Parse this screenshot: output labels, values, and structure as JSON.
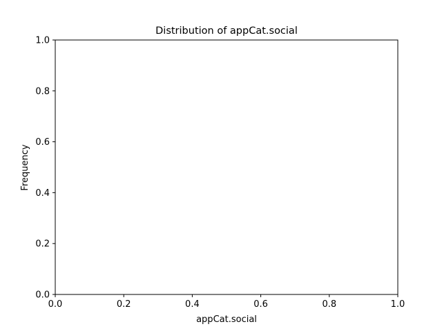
{
  "chart_data": {
    "type": "bar",
    "title": "Distribution of appCat.social",
    "xlabel": "appCat.social",
    "ylabel": "Frequency",
    "xlim": [
      0.0,
      1.0
    ],
    "ylim": [
      0.0,
      1.0
    ],
    "xticks": [
      0.0,
      0.2,
      0.4,
      0.6,
      0.8,
      1.0
    ],
    "yticks": [
      0.0,
      0.2,
      0.4,
      0.6,
      0.8,
      1.0
    ],
    "xtick_labels": [
      "0.0",
      "0.2",
      "0.4",
      "0.6",
      "0.8",
      "1.0"
    ],
    "ytick_labels": [
      "0.0",
      "0.2",
      "0.4",
      "0.6",
      "0.8",
      "1.0"
    ],
    "categories": [],
    "values": [],
    "grid": false,
    "legend": "none"
  }
}
